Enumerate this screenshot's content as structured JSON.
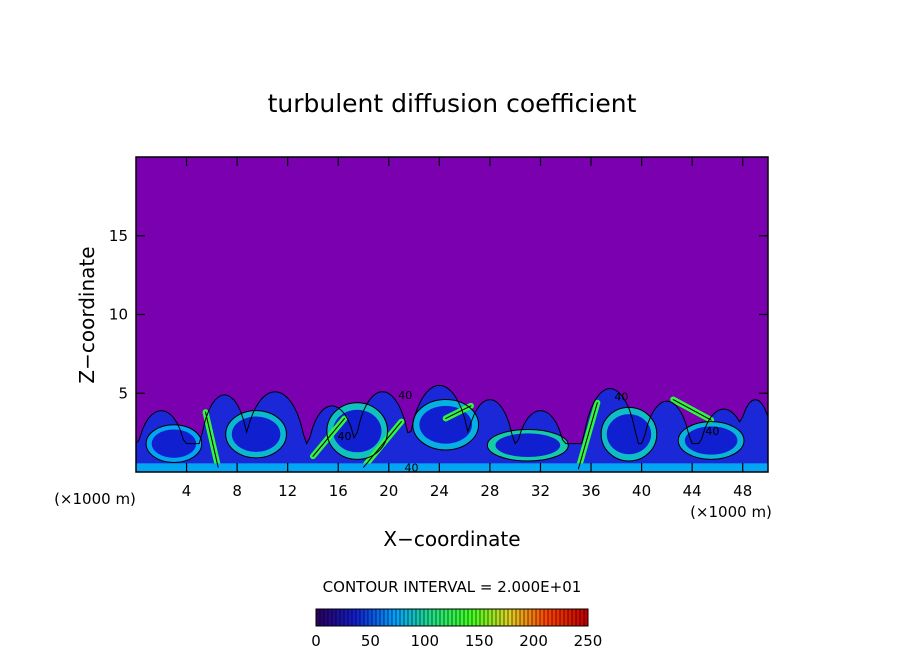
{
  "chart_data": {
    "type": "heatmap",
    "title": "turbulent diffusion coefficient",
    "xlabel": "X−coordinate",
    "ylabel": "Z−coordinate",
    "x_unit": "(×1000 m)",
    "y_unit": "(×1000 m)",
    "xlim": [
      0,
      50
    ],
    "ylim": [
      0,
      20
    ],
    "x_ticks": [
      4,
      8,
      12,
      16,
      20,
      24,
      28,
      32,
      36,
      40,
      44,
      48
    ],
    "y_ticks": [
      5,
      10,
      15
    ],
    "contour_interval_text": "CONTOUR INTERVAL = 2.000E+01",
    "colorbar": {
      "min": 0,
      "max": 250,
      "ticks": [
        0,
        50,
        100,
        150,
        200,
        250
      ],
      "colormap": [
        "#2a0060",
        "#1020d0",
        "#00a0ff",
        "#20e080",
        "#40ff20",
        "#e0d020",
        "#ff4000",
        "#c00000"
      ]
    },
    "background_value_color": "#7a00b0",
    "contour_labels": [
      {
        "text": "40",
        "x": 16.5,
        "z": 2.3
      },
      {
        "text": "40",
        "x": 21.3,
        "z": 4.9
      },
      {
        "text": "40",
        "x": 21.8,
        "z": 0.3
      },
      {
        "text": "40",
        "x": 38.4,
        "z": 4.8
      },
      {
        "text": "40",
        "x": 45.6,
        "z": 2.6
      }
    ]
  }
}
